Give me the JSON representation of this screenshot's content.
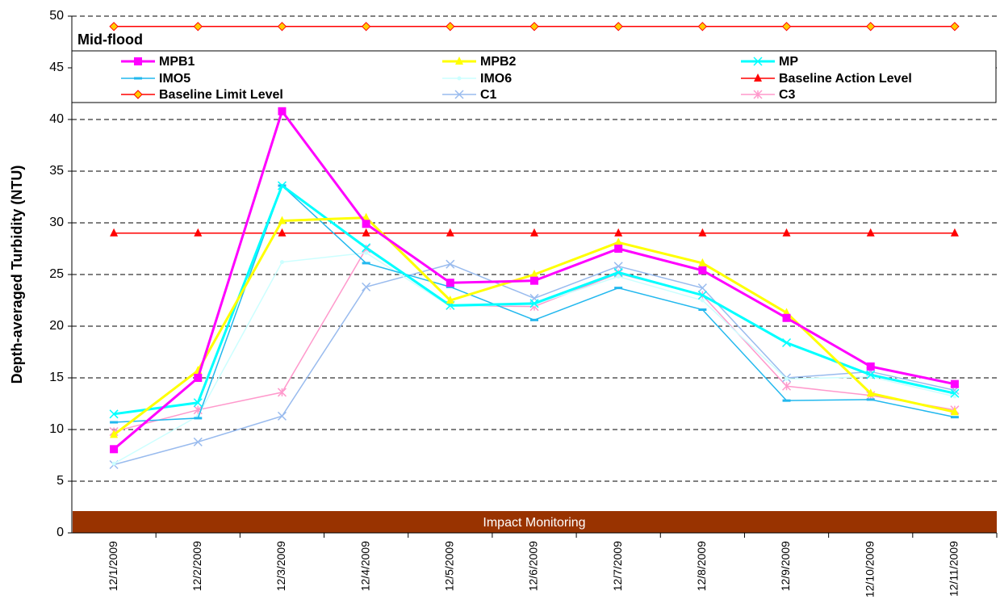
{
  "chart_data": {
    "type": "line",
    "annotation": "Mid-flood",
    "band_label": "Impact Monitoring",
    "y_label": "Depth-averaged Turbidity (NTU)",
    "categories": [
      "12/1/2009",
      "12/2/2009",
      "12/3/2009",
      "12/4/2009",
      "12/5/2009",
      "12/6/2009",
      "12/7/2009",
      "12/8/2009",
      "12/9/2009",
      "12/10/2009",
      "12/11/2009"
    ],
    "ylim": [
      0,
      50
    ],
    "yticks": [
      0,
      5,
      10,
      15,
      20,
      25,
      30,
      35,
      40,
      45,
      50
    ],
    "grid": true,
    "series": [
      {
        "name": "MPB1",
        "color": "#ff00ff",
        "marker": "square",
        "values": [
          8.1,
          15.0,
          40.8,
          29.9,
          24.2,
          24.4,
          27.5,
          25.4,
          20.8,
          16.1,
          14.4
        ]
      },
      {
        "name": "MPB2",
        "color": "#ffff00",
        "marker": "triangle",
        "values": [
          9.5,
          15.7,
          30.2,
          30.5,
          22.5,
          25.0,
          28.1,
          26.1,
          21.3,
          13.5,
          11.7
        ]
      },
      {
        "name": "MP",
        "color": "#00ffff",
        "marker": "x",
        "values": [
          11.5,
          12.6,
          33.6,
          27.6,
          22.0,
          22.2,
          25.2,
          23.0,
          18.4,
          15.3,
          13.5
        ]
      },
      {
        "name": "IMO5",
        "color": "#22b8ee",
        "marker": "dash",
        "values": [
          10.7,
          11.1,
          33.6,
          26.1,
          23.8,
          20.6,
          23.7,
          21.6,
          12.8,
          12.9,
          11.2
        ]
      },
      {
        "name": "IMO6",
        "color": "#ccffff",
        "marker": "dot",
        "values": [
          6.7,
          11.3,
          26.2,
          27.1,
          21.9,
          22.1,
          24.8,
          22.5,
          14.9,
          15.1,
          13.2
        ]
      },
      {
        "name": "Baseline Action Level",
        "color": "#ff0000",
        "marker": "triangle",
        "values": [
          29,
          29,
          29,
          29,
          29,
          29,
          29,
          29,
          29,
          29,
          29
        ]
      },
      {
        "name": "Baseline Limit Level",
        "color": "#ff0000",
        "marker": "diamond",
        "values": [
          49,
          49,
          49,
          49,
          49,
          49,
          49,
          49,
          49,
          49,
          49
        ]
      },
      {
        "name": "C1",
        "color": "#99bbee",
        "marker": "x",
        "values": [
          6.6,
          8.8,
          11.3,
          23.8,
          26.0,
          22.7,
          25.8,
          23.7,
          15.0,
          15.6,
          13.8
        ]
      },
      {
        "name": "C3",
        "color": "#ff99cc",
        "marker": "star",
        "values": [
          9.8,
          11.9,
          13.6,
          27.5,
          22.0,
          21.9,
          25.1,
          23.0,
          14.2,
          13.3,
          11.9
        ]
      }
    ]
  }
}
